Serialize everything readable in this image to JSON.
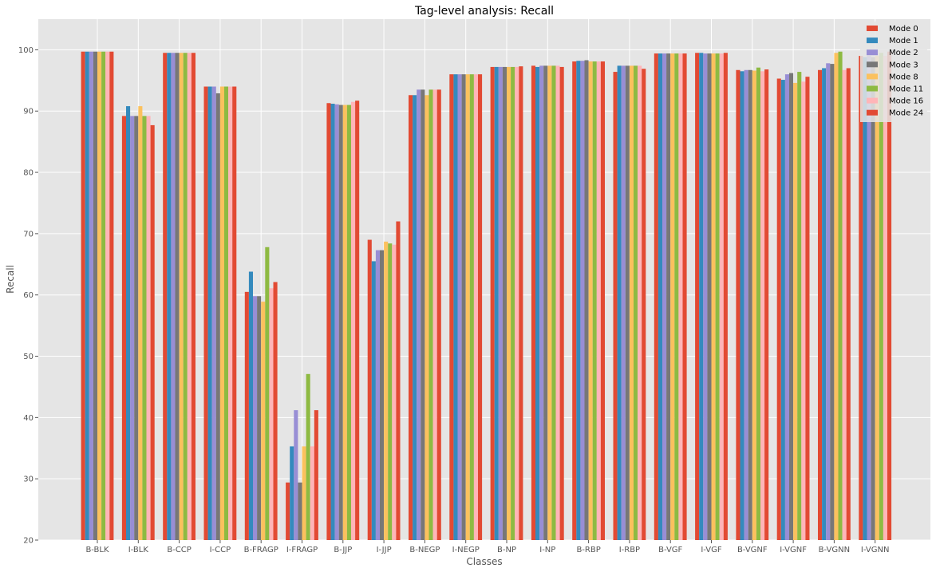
{
  "chart_data": {
    "type": "bar",
    "title": "Tag-level analysis: Recall",
    "xlabel": "Classes",
    "ylabel": "Recall",
    "ylim": [
      20,
      105
    ],
    "yticks": [
      20,
      30,
      40,
      50,
      60,
      70,
      80,
      90,
      100
    ],
    "grid": true,
    "legend_position": "top-right",
    "categories": [
      "B-BLK",
      "I-BLK",
      "B-CCP",
      "I-CCP",
      "B-FRAGP",
      "I-FRAGP",
      "B-JJP",
      "I-JJP",
      "B-NEGP",
      "I-NEGP",
      "B-NP",
      "I-NP",
      "B-RBP",
      "I-RBP",
      "B-VGF",
      "I-VGF",
      "B-VGNF",
      "I-VGNF",
      "B-VGNN",
      "I-VGNN"
    ],
    "series": [
      {
        "name": "Mode 0",
        "color": "#E24A33",
        "values": [
          99.7,
          89.2,
          99.5,
          94.0,
          60.5,
          29.4,
          91.3,
          69.0,
          92.6,
          96.0,
          97.2,
          97.4,
          98.1,
          96.4,
          99.4,
          99.5,
          96.7,
          95.3,
          96.7,
          99.0
        ]
      },
      {
        "name": "Mode 1",
        "color": "#348ABD",
        "values": [
          99.7,
          90.8,
          99.5,
          94.0,
          63.8,
          35.3,
          91.2,
          65.5,
          92.6,
          96.0,
          97.2,
          97.2,
          98.2,
          97.4,
          99.4,
          99.5,
          96.5,
          95.1,
          97.0,
          98.8
        ]
      },
      {
        "name": "Mode 2",
        "color": "#988ED5",
        "values": [
          99.7,
          89.2,
          99.5,
          94.0,
          59.8,
          41.2,
          91.1,
          67.3,
          93.5,
          96.0,
          97.2,
          97.4,
          98.2,
          97.4,
          99.4,
          99.4,
          96.7,
          96.0,
          97.8,
          99.0
        ]
      },
      {
        "name": "Mode 3",
        "color": "#777777",
        "values": [
          99.7,
          89.2,
          99.5,
          92.9,
          59.8,
          29.4,
          91.0,
          67.3,
          93.5,
          96.0,
          97.2,
          97.4,
          98.3,
          97.4,
          99.4,
          99.4,
          96.7,
          96.2,
          97.7,
          98.8
        ]
      },
      {
        "name": "Mode 8",
        "color": "#FBC15E",
        "values": [
          99.7,
          90.8,
          99.5,
          94.0,
          58.9,
          35.3,
          91.0,
          68.7,
          92.6,
          96.0,
          97.2,
          97.4,
          98.1,
          97.4,
          99.4,
          99.4,
          96.6,
          94.6,
          99.5,
          99.0
        ]
      },
      {
        "name": "Mode 11",
        "color": "#8EBA42",
        "values": [
          99.7,
          89.2,
          99.5,
          94.0,
          67.8,
          47.1,
          91.0,
          68.4,
          93.5,
          96.0,
          97.2,
          97.4,
          98.1,
          97.4,
          99.4,
          99.4,
          97.1,
          96.4,
          99.7,
          99.5
        ]
      },
      {
        "name": "Mode 16",
        "color": "#FFB5B8",
        "values": [
          99.7,
          89.2,
          99.5,
          94.0,
          61.1,
          35.3,
          91.5,
          68.2,
          93.5,
          96.0,
          97.2,
          97.4,
          98.1,
          97.4,
          99.4,
          99.4,
          96.5,
          94.8,
          96.7,
          99.0
        ]
      },
      {
        "name": "Mode 24",
        "color": "#E24A33",
        "values": [
          99.7,
          87.7,
          99.5,
          94.0,
          62.1,
          41.2,
          91.7,
          72.0,
          93.5,
          96.0,
          97.3,
          97.2,
          98.1,
          96.9,
          99.4,
          99.5,
          96.8,
          95.6,
          97.0,
          99.7
        ]
      }
    ]
  }
}
